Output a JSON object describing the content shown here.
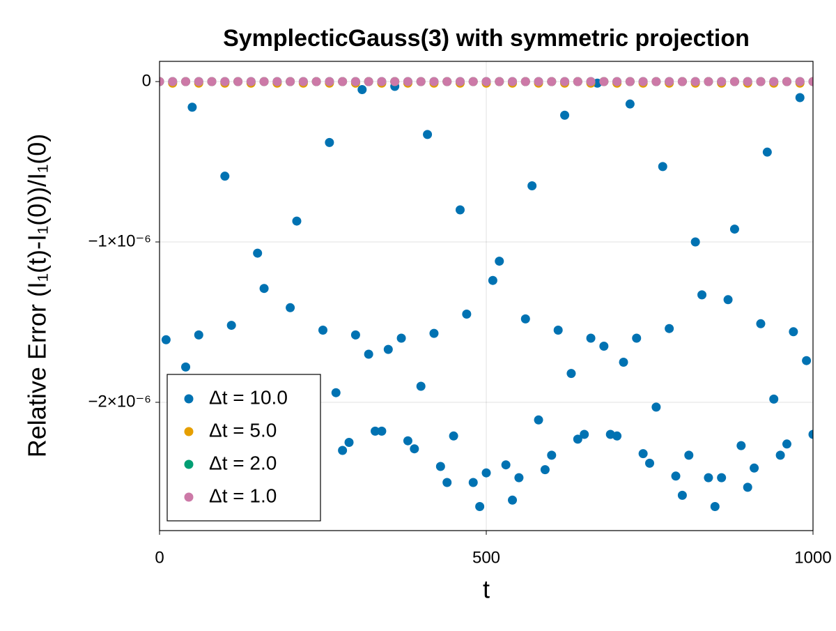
{
  "chart_data": {
    "type": "scatter",
    "title": "SymplecticGauss(3) with symmetric projection",
    "x_label": "t",
    "y_label": "Relative Error (I₁(t)-I₁(0))/I₁(0)",
    "xlim": [
      0,
      1000
    ],
    "ylim": [
      -2.8e-06,
      1.26e-07
    ],
    "xticks": [
      0,
      500,
      1000
    ],
    "yticks": [
      0,
      {
        "value": -1e-06,
        "label": "−1×10⁻⁶"
      },
      {
        "value": -2e-06,
        "label": "−2×10⁻⁶"
      }
    ],
    "grid": true,
    "legend": "bottom-left",
    "series": [
      {
        "name": "Δt = 10.0",
        "color": "#0072b2",
        "x": [
          10,
          40,
          50,
          60,
          100,
          110,
          150,
          160,
          200,
          210,
          250,
          260,
          270,
          280,
          290,
          300,
          310,
          320,
          330,
          340,
          350,
          360,
          370,
          380,
          390,
          400,
          410,
          420,
          430,
          440,
          450,
          460,
          470,
          480,
          490,
          500,
          510,
          520,
          530,
          540,
          550,
          560,
          570,
          580,
          590,
          600,
          610,
          620,
          630,
          640,
          650,
          660,
          670,
          680,
          690,
          700,
          710,
          720,
          730,
          740,
          750,
          760,
          770,
          780,
          790,
          800,
          810,
          820,
          830,
          840,
          850,
          860,
          870,
          880,
          890,
          900,
          910,
          920,
          930,
          940,
          950,
          960,
          970,
          980,
          990,
          1000
        ],
        "values": [
          -1.61e-06,
          -1.78e-06,
          -1.6e-07,
          -1.58e-06,
          -5.9e-07,
          -1.52e-06,
          -1.07e-06,
          -1.29e-06,
          -1.41e-06,
          -8.7e-07,
          -1.55e-06,
          -3.8e-07,
          -1.94e-06,
          -2.3e-06,
          -2.25e-06,
          -1.58e-06,
          -5e-08,
          -1.7e-06,
          -2.18e-06,
          -2.18e-06,
          -1.67e-06,
          -3e-08,
          -1.6e-06,
          -2.24e-06,
          -2.29e-06,
          -1.9e-06,
          -3.3e-07,
          -1.57e-06,
          -2.4e-06,
          -2.5e-06,
          -2.21e-06,
          -8e-07,
          -1.45e-06,
          -2.5e-06,
          -2.65e-06,
          -2.44e-06,
          -1.24e-06,
          -1.12e-06,
          -2.39e-06,
          -2.61e-06,
          -2.47e-06,
          -1.48e-06,
          -6.5e-07,
          -2.11e-06,
          -2.42e-06,
          -2.33e-06,
          -1.55e-06,
          -2.1e-07,
          -1.82e-06,
          -2.23e-06,
          -2.2e-06,
          -1.6e-06,
          -1e-08,
          -1.65e-06,
          -2.2e-06,
          -2.21e-06,
          -1.75e-06,
          -1.4e-07,
          -1.6e-06,
          -2.32e-06,
          -2.38e-06,
          -2.03e-06,
          -5.3e-07,
          -1.54e-06,
          -2.46e-06,
          -2.58e-06,
          -2.33e-06,
          -1e-06,
          -1.33e-06,
          -2.47e-06,
          -2.65e-06,
          -2.47e-06,
          -1.36e-06,
          -9.2e-07,
          -2.27e-06,
          -2.53e-06,
          -2.41e-06,
          -1.51e-06,
          -4.4e-07,
          -1.98e-06,
          -2.33e-06,
          -2.26e-06,
          -1.56e-06,
          -1e-07,
          -1.74e-06,
          -2.2e-06
        ]
      },
      {
        "name": "Δt = 5.0",
        "color": "#e69f00",
        "x": [
          0,
          20,
          40,
          60,
          80,
          100,
          120,
          140,
          160,
          180,
          200,
          220,
          240,
          260,
          280,
          300,
          320,
          340,
          360,
          380,
          400,
          420,
          440,
          460,
          480,
          500,
          520,
          540,
          560,
          580,
          600,
          620,
          640,
          660,
          680,
          700,
          720,
          740,
          760,
          780,
          800,
          820,
          840,
          860,
          880,
          900,
          920,
          940,
          960,
          980,
          1000
        ],
        "values": [
          0,
          -1e-08,
          0,
          -1e-08,
          0,
          -1e-08,
          0,
          -1e-08,
          0,
          -1e-08,
          0,
          -1e-08,
          0,
          -1e-08,
          0,
          -1e-08,
          0,
          -1e-08,
          0,
          -1e-08,
          0,
          -1e-08,
          0,
          -1e-08,
          0,
          -1e-08,
          0,
          -1e-08,
          0,
          -1e-08,
          0,
          -1e-08,
          0,
          -1e-08,
          0,
          -1e-08,
          0,
          -1e-08,
          0,
          -1e-08,
          0,
          -1e-08,
          0,
          -1e-08,
          0,
          -1e-08,
          0,
          -1e-08,
          0,
          -1e-08,
          0
        ]
      },
      {
        "name": "Δt = 2.0",
        "color": "#009e73",
        "x": [
          0,
          20,
          40,
          60,
          80,
          100,
          120,
          140,
          160,
          180,
          200,
          220,
          240,
          260,
          280,
          300,
          320,
          340,
          360,
          380,
          400,
          420,
          440,
          460,
          480,
          500,
          520,
          540,
          560,
          580,
          600,
          620,
          640,
          660,
          680,
          700,
          720,
          740,
          760,
          780,
          800,
          820,
          840,
          860,
          880,
          900,
          920,
          940,
          960,
          980,
          1000
        ],
        "values": [
          0,
          0,
          0,
          0,
          0,
          0,
          0,
          0,
          0,
          0,
          0,
          0,
          0,
          0,
          0,
          0,
          0,
          0,
          0,
          0,
          0,
          0,
          0,
          0,
          0,
          0,
          0,
          0,
          0,
          0,
          0,
          0,
          0,
          0,
          0,
          0,
          0,
          0,
          0,
          0,
          0,
          0,
          0,
          0,
          0,
          0,
          0,
          0,
          0,
          0,
          0
        ]
      },
      {
        "name": "Δt = 1.0",
        "color": "#cc79a7",
        "x": [
          0,
          20,
          40,
          60,
          80,
          100,
          120,
          140,
          160,
          180,
          200,
          220,
          240,
          260,
          280,
          300,
          320,
          340,
          360,
          380,
          400,
          420,
          440,
          460,
          480,
          500,
          520,
          540,
          560,
          580,
          600,
          620,
          640,
          660,
          680,
          700,
          720,
          740,
          760,
          780,
          800,
          820,
          840,
          860,
          880,
          900,
          920,
          940,
          960,
          980,
          1000
        ],
        "values": [
          0,
          0,
          0,
          0,
          0,
          0,
          0,
          0,
          0,
          0,
          0,
          0,
          0,
          0,
          0,
          0,
          0,
          0,
          0,
          0,
          0,
          0,
          0,
          0,
          0,
          0,
          0,
          0,
          0,
          0,
          0,
          0,
          0,
          0,
          0,
          0,
          0,
          0,
          0,
          0,
          0,
          0,
          0,
          0,
          0,
          0,
          0,
          0,
          0,
          0,
          0
        ]
      }
    ]
  }
}
